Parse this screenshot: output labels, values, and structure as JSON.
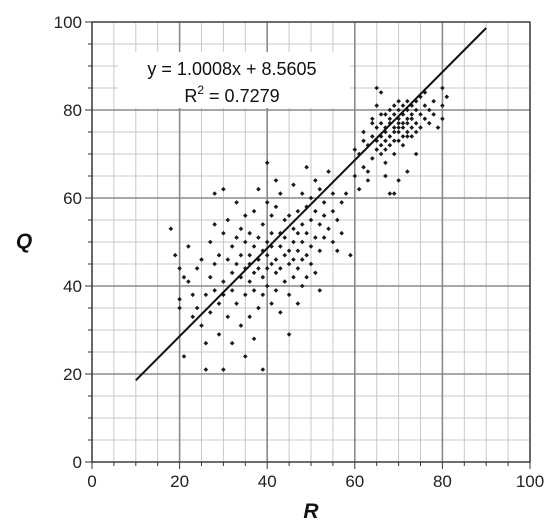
{
  "chart_data": {
    "type": "scatter",
    "title": "",
    "xlabel": "R",
    "ylabel": "Q",
    "xlim": [
      0,
      100
    ],
    "ylim": [
      0,
      100
    ],
    "x_ticks": [
      0,
      20,
      40,
      60,
      80,
      100
    ],
    "y_ticks": [
      0,
      20,
      40,
      60,
      80,
      100
    ],
    "grid": true,
    "minor_grid_step": 5,
    "point_color": "#1a1a1a",
    "line_color": "#111111",
    "trendline": {
      "slope": 1.0008,
      "intercept": 8.5605,
      "x_start": 10,
      "x_end": 90,
      "equation_label": "y = 1.0008x + 8.5605",
      "r2_prefix": "R",
      "r2_sup": "2",
      "r2_value": " = 0.7279"
    },
    "points": [
      [
        18,
        53
      ],
      [
        19,
        47
      ],
      [
        20,
        44
      ],
      [
        20,
        37
      ],
      [
        20,
        35
      ],
      [
        21,
        24
      ],
      [
        21,
        42
      ],
      [
        22,
        49
      ],
      [
        22,
        41
      ],
      [
        23,
        33
      ],
      [
        23,
        38
      ],
      [
        24,
        35
      ],
      [
        24,
        44
      ],
      [
        25,
        31
      ],
      [
        25,
        46
      ],
      [
        26,
        27
      ],
      [
        26,
        38
      ],
      [
        26,
        21
      ],
      [
        27,
        42
      ],
      [
        27,
        50
      ],
      [
        27,
        34
      ],
      [
        28,
        45
      ],
      [
        28,
        61
      ],
      [
        28,
        39
      ],
      [
        28,
        54
      ],
      [
        29,
        47
      ],
      [
        29,
        36
      ],
      [
        29,
        29
      ],
      [
        30,
        41
      ],
      [
        30,
        52
      ],
      [
        30,
        62
      ],
      [
        30,
        38
      ],
      [
        30,
        21
      ],
      [
        31,
        46
      ],
      [
        31,
        55
      ],
      [
        31,
        33
      ],
      [
        32,
        43
      ],
      [
        32,
        49
      ],
      [
        32,
        39
      ],
      [
        32,
        27
      ],
      [
        33,
        51
      ],
      [
        33,
        45
      ],
      [
        33,
        36
      ],
      [
        33,
        59
      ],
      [
        34,
        42
      ],
      [
        34,
        47
      ],
      [
        34,
        53
      ],
      [
        34,
        31
      ],
      [
        35,
        44
      ],
      [
        35,
        50
      ],
      [
        35,
        38
      ],
      [
        35,
        56
      ],
      [
        35,
        24
      ],
      [
        36,
        45
      ],
      [
        36,
        41
      ],
      [
        36,
        52
      ],
      [
        36,
        47
      ],
      [
        36,
        33
      ],
      [
        37,
        49
      ],
      [
        37,
        43
      ],
      [
        37,
        57
      ],
      [
        37,
        39
      ],
      [
        37,
        28
      ],
      [
        38,
        46
      ],
      [
        38,
        51
      ],
      [
        38,
        44
      ],
      [
        38,
        62
      ],
      [
        38,
        35
      ],
      [
        39,
        48
      ],
      [
        39,
        42
      ],
      [
        39,
        54
      ],
      [
        39,
        38
      ],
      [
        39,
        21
      ],
      [
        40,
        47
      ],
      [
        40,
        50
      ],
      [
        40,
        44
      ],
      [
        40,
        59
      ],
      [
        40,
        40
      ],
      [
        40,
        68
      ],
      [
        41,
        45
      ],
      [
        41,
        52
      ],
      [
        41,
        49
      ],
      [
        41,
        36
      ],
      [
        41,
        56
      ],
      [
        42,
        46
      ],
      [
        42,
        43
      ],
      [
        42,
        58
      ],
      [
        42,
        39
      ],
      [
        42,
        64
      ],
      [
        43,
        49
      ],
      [
        43,
        52
      ],
      [
        43,
        44
      ],
      [
        43,
        34
      ],
      [
        43,
        61
      ],
      [
        44,
        47
      ],
      [
        44,
        55
      ],
      [
        44,
        41
      ],
      [
        44,
        51
      ],
      [
        45,
        48
      ],
      [
        45,
        45
      ],
      [
        45,
        56
      ],
      [
        45,
        38
      ],
      [
        45,
        29
      ],
      [
        46,
        50
      ],
      [
        46,
        46
      ],
      [
        46,
        53
      ],
      [
        46,
        63
      ],
      [
        46,
        42
      ],
      [
        47,
        52
      ],
      [
        47,
        48
      ],
      [
        47,
        57
      ],
      [
        47,
        44
      ],
      [
        47,
        36
      ],
      [
        48,
        50
      ],
      [
        48,
        54
      ],
      [
        48,
        46
      ],
      [
        48,
        61
      ],
      [
        48,
        40
      ],
      [
        49,
        52
      ],
      [
        49,
        58
      ],
      [
        49,
        47
      ],
      [
        49,
        67
      ],
      [
        49,
        42
      ],
      [
        50,
        55
      ],
      [
        50,
        49
      ],
      [
        50,
        60
      ],
      [
        50,
        45
      ],
      [
        51,
        51
      ],
      [
        51,
        57
      ],
      [
        51,
        64
      ],
      [
        51,
        43
      ],
      [
        52,
        54
      ],
      [
        52,
        48
      ],
      [
        52,
        62
      ],
      [
        52,
        39
      ],
      [
        53,
        56
      ],
      [
        53,
        51
      ],
      [
        53,
        59
      ],
      [
        54,
        53
      ],
      [
        54,
        66
      ],
      [
        55,
        57
      ],
      [
        55,
        50
      ],
      [
        55,
        61
      ],
      [
        56,
        55
      ],
      [
        56,
        48
      ],
      [
        57,
        59
      ],
      [
        57,
        52
      ],
      [
        58,
        61
      ],
      [
        59,
        47
      ],
      [
        60,
        65
      ],
      [
        60,
        71
      ],
      [
        61,
        70
      ],
      [
        62,
        67
      ],
      [
        62,
        75
      ],
      [
        63,
        72
      ],
      [
        63,
        64
      ],
      [
        64,
        74
      ],
      [
        64,
        69
      ],
      [
        64,
        78
      ],
      [
        65,
        71
      ],
      [
        65,
        76
      ],
      [
        65,
        73
      ],
      [
        65,
        81
      ],
      [
        66,
        74
      ],
      [
        66,
        70
      ],
      [
        66,
        77
      ],
      [
        66,
        79
      ],
      [
        66,
        72
      ],
      [
        66,
        84
      ],
      [
        67,
        73
      ],
      [
        67,
        76
      ],
      [
        67,
        79
      ],
      [
        67,
        71
      ],
      [
        67,
        75
      ],
      [
        67,
        68
      ],
      [
        68,
        77
      ],
      [
        68,
        74
      ],
      [
        68,
        80
      ],
      [
        68,
        72
      ],
      [
        68,
        78
      ],
      [
        68,
        61
      ],
      [
        69,
        76
      ],
      [
        69,
        79
      ],
      [
        69,
        73
      ],
      [
        69,
        81
      ],
      [
        69,
        75
      ],
      [
        69,
        70
      ],
      [
        70,
        78
      ],
      [
        70,
        75
      ],
      [
        70,
        80
      ],
      [
        70,
        77
      ],
      [
        70,
        73
      ],
      [
        70,
        82
      ],
      [
        70,
        76
      ],
      [
        71,
        77
      ],
      [
        71,
        74
      ],
      [
        71,
        79
      ],
      [
        71,
        81
      ],
      [
        71,
        76
      ],
      [
        71,
        72
      ],
      [
        72,
        78
      ],
      [
        72,
        75
      ],
      [
        72,
        80
      ],
      [
        72,
        77
      ],
      [
        72,
        82
      ],
      [
        72,
        74
      ],
      [
        73,
        79
      ],
      [
        73,
        76
      ],
      [
        73,
        81
      ],
      [
        73,
        78
      ],
      [
        73,
        74
      ],
      [
        74,
        80
      ],
      [
        74,
        77
      ],
      [
        74,
        82
      ],
      [
        74,
        75
      ],
      [
        75,
        79
      ],
      [
        75,
        83
      ],
      [
        75,
        76
      ],
      [
        76,
        81
      ],
      [
        76,
        78
      ],
      [
        76,
        84
      ],
      [
        77,
        80
      ],
      [
        77,
        77
      ],
      [
        78,
        82
      ],
      [
        78,
        79
      ],
      [
        79,
        76
      ],
      [
        80,
        81
      ],
      [
        80,
        78
      ],
      [
        80,
        85
      ],
      [
        81,
        83
      ],
      [
        61,
        62
      ],
      [
        63,
        66
      ],
      [
        65,
        85
      ],
      [
        67,
        65
      ],
      [
        69,
        61
      ],
      [
        70,
        64
      ],
      [
        72,
        66
      ],
      [
        74,
        70
      ],
      [
        62,
        73
      ],
      [
        64,
        77
      ]
    ]
  }
}
